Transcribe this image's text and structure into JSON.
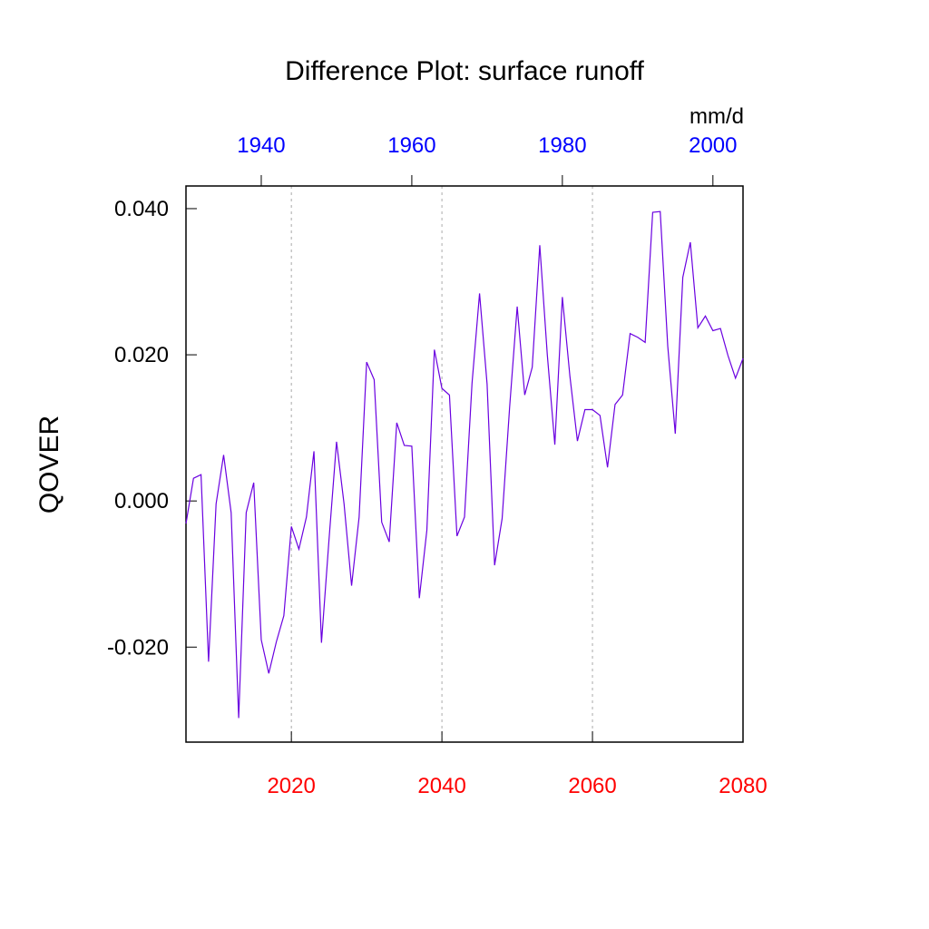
{
  "chart_data": {
    "type": "line",
    "title": "Difference Plot: surface runoff",
    "y_label": "QOVER",
    "units": "mm/d",
    "x": [
      2006,
      2007,
      2008,
      2009,
      2010,
      2011,
      2012,
      2013,
      2014,
      2015,
      2016,
      2017,
      2018,
      2019,
      2020,
      2021,
      2022,
      2023,
      2024,
      2025,
      2026,
      2027,
      2028,
      2029,
      2030,
      2031,
      2032,
      2033,
      2034,
      2035,
      2036,
      2037,
      2038,
      2039,
      2040,
      2041,
      2042,
      2043,
      2044,
      2045,
      2046,
      2047,
      2048,
      2049,
      2050,
      2051,
      2052,
      2053,
      2054,
      2055,
      2056,
      2057,
      2058,
      2059,
      2060,
      2061,
      2062,
      2063,
      2064,
      2065,
      2066,
      2067,
      2068,
      2069,
      2070,
      2071,
      2072,
      2073,
      2074,
      2075,
      2076,
      2077,
      2078,
      2079,
      2080
    ],
    "series": [
      {
        "color": "#6a00e0",
        "values": [
          -0.0031,
          0.0031,
          0.0036,
          -0.022,
          -0.0004,
          0.0063,
          -0.0016,
          -0.0297,
          -0.0016,
          0.0025,
          -0.019,
          -0.0236,
          -0.0193,
          -0.0157,
          -0.0035,
          -0.0066,
          -0.0022,
          0.0068,
          -0.0194,
          -0.0053,
          0.0081,
          -0.0004,
          -0.0116,
          -0.0022,
          0.019,
          0.0166,
          -0.0029,
          -0.0056,
          0.0107,
          0.0076,
          0.0075,
          -0.0133,
          -0.004,
          0.0207,
          0.0154,
          0.0145,
          -0.0048,
          -0.0022,
          0.0161,
          0.0284,
          0.016,
          -0.0088,
          -0.0024,
          0.0129,
          0.0266,
          0.0145,
          0.0183,
          0.035,
          0.02,
          0.0077,
          0.0279,
          0.0171,
          0.0082,
          0.0125,
          0.0125,
          0.0117,
          0.0046,
          0.0132,
          0.0145,
          0.0229,
          0.0224,
          0.0217,
          0.0395,
          0.0396,
          0.0212,
          0.0092,
          0.0306,
          0.0354,
          0.0237,
          0.0253,
          0.0233,
          0.0236,
          0.0199,
          0.0168,
          0.0195
        ]
      }
    ],
    "xlim": [
      2006,
      2080
    ],
    "xticks": [
      2020,
      2040,
      2060,
      2080
    ],
    "xtick_color": "#ff0000",
    "x2lim": [
      1930,
      2004
    ],
    "x2ticks": [
      1940,
      1960,
      1980,
      2000
    ],
    "x2tick_color": "#0000ff",
    "ylim": [
      -0.033,
      0.0431
    ],
    "yticks": [
      {
        "value": -0.02,
        "label": "-0.020"
      },
      {
        "value": 0,
        "label": "0.000"
      },
      {
        "value": 0.02,
        "label": "0.020"
      },
      {
        "value": 0.04,
        "label": "0.040"
      }
    ],
    "grid": true
  }
}
